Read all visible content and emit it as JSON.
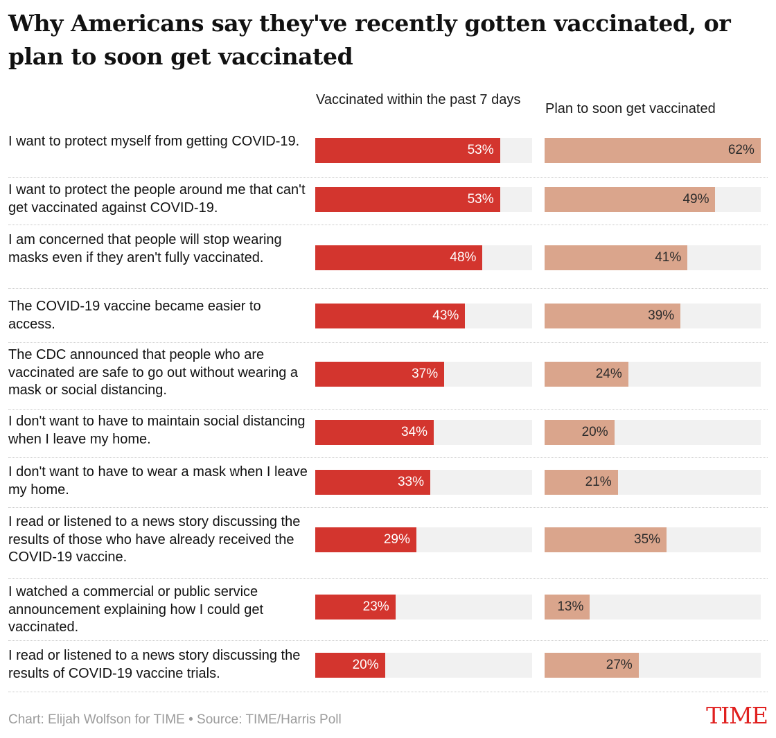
{
  "title": "Why Americans say they've recently gotten vaccinated, or plan to soon get vaccinated",
  "footer": "Chart: Elijah Wolfson for TIME • Source: TIME/Harris Poll",
  "logo": "TIME",
  "colors": {
    "vaccinated": "#d3352e",
    "plan": "#daa58c",
    "track": "#f1f1f1",
    "logo": "#e0201f"
  },
  "chart_data": {
    "type": "bar",
    "orientation": "horizontal",
    "value_unit": "%",
    "value_max": 100,
    "categories": [
      "I want to protect myself from getting COVID-19.",
      "I want to protect the people around me that can't get vaccinated against COVID-19.",
      "I am concerned that people will stop wearing masks even if they aren't fully vaccinated.",
      "The COVID-19 vaccine became easier to access.",
      "The CDC announced that people who are vaccinated are safe to go out without wearing a mask or social distancing.",
      "I don't want to have to maintain social distancing when I leave my home.",
      "I don't want to have to wear a mask when I leave my home.",
      "I read or listened to a news story discussing the results of those who have already received the COVID-19 vaccine.",
      "I watched a commercial or public service announcement explaining how I could get vaccinated.",
      "I read or listened to a news story discussing the results of COVID-19 vaccine trials."
    ],
    "series": [
      {
        "name": "Vaccinated within the past 7 days",
        "values": [
          53,
          53,
          48,
          43,
          37,
          34,
          33,
          29,
          23,
          20
        ],
        "labels": [
          "53%",
          "53%",
          "48%",
          "43%",
          "37%",
          "34%",
          "33%",
          "29%",
          "23%",
          "20%"
        ]
      },
      {
        "name": "Plan to soon get vaccinated",
        "values": [
          62,
          49,
          41,
          39,
          24,
          20,
          21,
          35,
          13,
          27
        ],
        "labels": [
          "62%",
          "49%",
          "41%",
          "39%",
          "24%",
          "20%",
          "21%",
          "35%",
          "13%",
          "27%"
        ]
      }
    ]
  }
}
